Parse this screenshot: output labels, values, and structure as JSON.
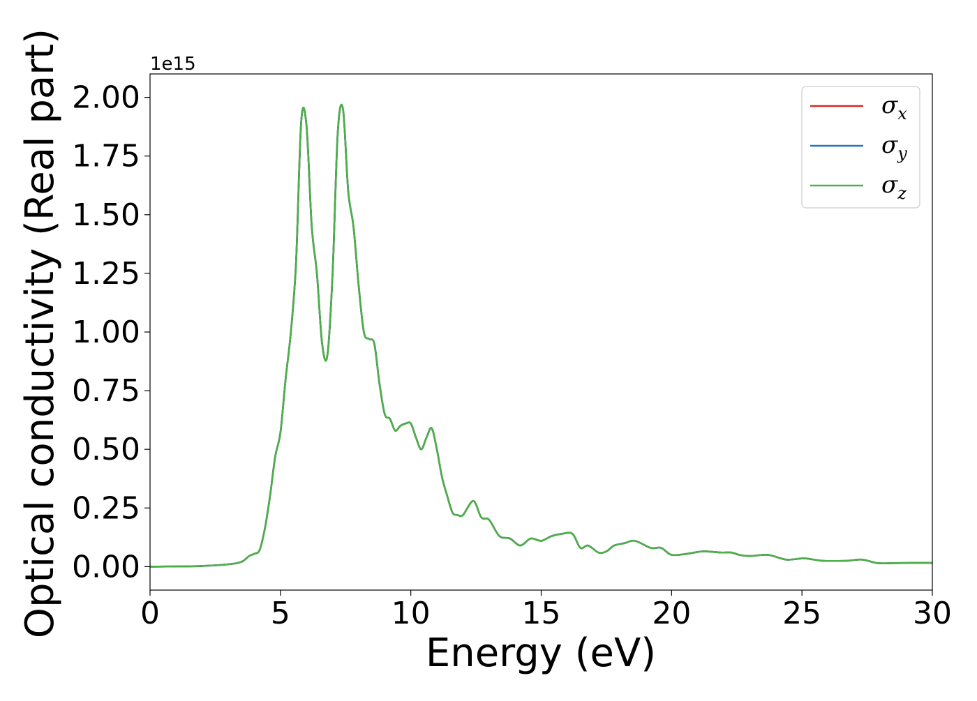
{
  "chart_data": {
    "type": "line",
    "xlabel": "Energy (eV)",
    "ylabel": "Optical conductivity (Real part)",
    "y_offset_text": "1e15",
    "y_multiplier": 1000000000000000.0,
    "xlim": [
      0,
      30
    ],
    "ylim": [
      -0.1,
      2.1
    ],
    "x_ticks": [
      0,
      5,
      10,
      15,
      20,
      25,
      30
    ],
    "x_tick_labels": [
      "0",
      "5",
      "10",
      "15",
      "20",
      "25",
      "30"
    ],
    "y_ticks": [
      0.0,
      0.25,
      0.5,
      0.75,
      1.0,
      1.25,
      1.5,
      1.75,
      2.0
    ],
    "y_tick_labels": [
      "0.00",
      "0.25",
      "0.50",
      "0.75",
      "1.00",
      "1.25",
      "1.50",
      "1.75",
      "2.00"
    ],
    "grid": false,
    "legend_position": "top-right",
    "x": [
      0,
      1,
      2,
      3,
      3.5,
      3.8,
      4.0,
      4.2,
      4.4,
      4.6,
      4.8,
      5.0,
      5.2,
      5.4,
      5.6,
      5.8,
      6.0,
      6.2,
      6.4,
      6.6,
      6.8,
      7.0,
      7.2,
      7.4,
      7.6,
      7.8,
      8.0,
      8.2,
      8.4,
      8.6,
      8.8,
      9.0,
      9.2,
      9.4,
      9.6,
      9.8,
      10.0,
      10.2,
      10.4,
      10.6,
      10.8,
      11.0,
      11.2,
      11.4,
      11.6,
      11.8,
      12.0,
      12.4,
      12.7,
      13.0,
      13.4,
      13.8,
      14.2,
      14.6,
      15.0,
      15.4,
      15.8,
      16.2,
      16.5,
      16.8,
      17.2,
      17.5,
      17.8,
      18.2,
      18.6,
      19.2,
      19.6,
      20.0,
      20.6,
      21.2,
      21.9,
      22.3,
      22.6,
      23.0,
      23.7,
      24.4,
      25.1,
      25.8,
      26.7,
      27.3,
      27.9,
      28.5,
      29.2,
      30.0
    ],
    "series": [
      {
        "name": "σx",
        "color": "#d62728",
        "values": [
          0,
          0.001,
          0.003,
          0.01,
          0.02,
          0.045,
          0.055,
          0.07,
          0.16,
          0.3,
          0.47,
          0.57,
          0.8,
          1.0,
          1.3,
          1.9,
          1.88,
          1.45,
          1.25,
          0.95,
          0.9,
          1.25,
          1.85,
          1.95,
          1.6,
          1.45,
          1.2,
          1.0,
          0.97,
          0.95,
          0.78,
          0.65,
          0.63,
          0.58,
          0.6,
          0.61,
          0.61,
          0.55,
          0.5,
          0.55,
          0.59,
          0.5,
          0.38,
          0.3,
          0.23,
          0.22,
          0.22,
          0.28,
          0.21,
          0.2,
          0.13,
          0.12,
          0.09,
          0.12,
          0.11,
          0.13,
          0.14,
          0.14,
          0.08,
          0.09,
          0.06,
          0.065,
          0.09,
          0.1,
          0.11,
          0.08,
          0.08,
          0.05,
          0.055,
          0.065,
          0.06,
          0.06,
          0.05,
          0.045,
          0.05,
          0.03,
          0.035,
          0.025,
          0.025,
          0.03,
          0.015,
          0.015,
          0.016,
          0.016
        ]
      },
      {
        "name": "σy",
        "color": "#1f77b4",
        "values": [
          0,
          0.001,
          0.003,
          0.01,
          0.02,
          0.045,
          0.055,
          0.07,
          0.16,
          0.3,
          0.47,
          0.57,
          0.8,
          1.0,
          1.3,
          1.9,
          1.88,
          1.45,
          1.25,
          0.95,
          0.9,
          1.25,
          1.85,
          1.95,
          1.6,
          1.45,
          1.2,
          1.0,
          0.97,
          0.95,
          0.78,
          0.65,
          0.63,
          0.58,
          0.6,
          0.61,
          0.61,
          0.55,
          0.5,
          0.55,
          0.59,
          0.5,
          0.38,
          0.3,
          0.23,
          0.22,
          0.22,
          0.28,
          0.21,
          0.2,
          0.13,
          0.12,
          0.09,
          0.12,
          0.11,
          0.13,
          0.14,
          0.14,
          0.08,
          0.09,
          0.06,
          0.065,
          0.09,
          0.1,
          0.11,
          0.08,
          0.08,
          0.05,
          0.055,
          0.065,
          0.06,
          0.06,
          0.05,
          0.045,
          0.05,
          0.03,
          0.035,
          0.025,
          0.025,
          0.03,
          0.015,
          0.015,
          0.016,
          0.016
        ]
      },
      {
        "name": "σz",
        "color": "#4daf4a",
        "values": [
          0,
          0.001,
          0.003,
          0.01,
          0.02,
          0.045,
          0.055,
          0.07,
          0.16,
          0.3,
          0.47,
          0.57,
          0.8,
          1.0,
          1.3,
          1.9,
          1.88,
          1.45,
          1.25,
          0.95,
          0.9,
          1.25,
          1.85,
          1.95,
          1.6,
          1.45,
          1.2,
          1.0,
          0.97,
          0.95,
          0.78,
          0.65,
          0.63,
          0.58,
          0.6,
          0.61,
          0.61,
          0.55,
          0.5,
          0.55,
          0.59,
          0.5,
          0.38,
          0.3,
          0.23,
          0.22,
          0.22,
          0.28,
          0.21,
          0.2,
          0.13,
          0.12,
          0.09,
          0.12,
          0.11,
          0.13,
          0.14,
          0.14,
          0.08,
          0.09,
          0.06,
          0.065,
          0.09,
          0.1,
          0.11,
          0.08,
          0.08,
          0.05,
          0.055,
          0.065,
          0.06,
          0.06,
          0.05,
          0.045,
          0.05,
          0.03,
          0.035,
          0.025,
          0.025,
          0.03,
          0.015,
          0.015,
          0.016,
          0.016
        ]
      }
    ],
    "legend": [
      {
        "symbol": "σ",
        "subscript": "x"
      },
      {
        "symbol": "σ",
        "subscript": "y"
      },
      {
        "symbol": "σ",
        "subscript": "z"
      }
    ]
  }
}
